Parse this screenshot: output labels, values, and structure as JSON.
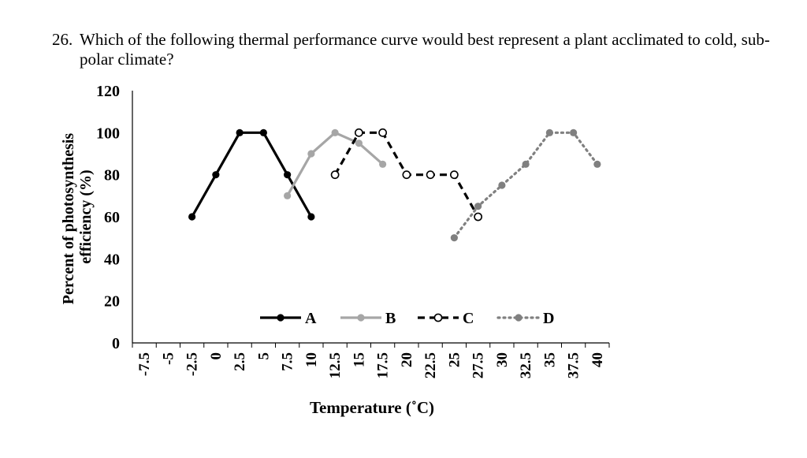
{
  "question": {
    "number": "26.",
    "text": "Which of the following thermal performance curve would best represent a plant acclimated to cold, sub-polar climate?"
  },
  "chart_data": {
    "type": "line",
    "title": "",
    "xlabel": "Temperature (˚C)",
    "ylabel_line1": "Percent of photosynthesis",
    "ylabel_line2": "efficiency (%)",
    "categories": [
      "-7.5",
      "-5",
      "-2.5",
      "0",
      "2.5",
      "5",
      "7.5",
      "10",
      "12.5",
      "15",
      "17.5",
      "20",
      "22.5",
      "25",
      "27.5",
      "30",
      "32.5",
      "35",
      "37.5",
      "40"
    ],
    "y_ticks": [
      "0",
      "20",
      "40",
      "60",
      "80",
      "100",
      "120"
    ],
    "ylim": [
      0,
      120
    ],
    "grid": false,
    "legend_position": "bottom-inside",
    "series": [
      {
        "name": "A",
        "color": "#000000",
        "dash": "solid",
        "marker": "filled",
        "x": [
          -2.5,
          0,
          2.5,
          5,
          7.5,
          10
        ],
        "y": [
          60,
          80,
          100,
          100,
          80,
          60
        ]
      },
      {
        "name": "B",
        "color": "#a6a6a6",
        "dash": "solid",
        "marker": "filled",
        "x": [
          7.5,
          10,
          12.5,
          15,
          17.5
        ],
        "y": [
          70,
          90,
          100,
          95,
          85
        ]
      },
      {
        "name": "C",
        "color": "#000000",
        "dash": "dashed",
        "marker": "open",
        "x": [
          12.5,
          15,
          17.5,
          20,
          22.5,
          25,
          27.5
        ],
        "y": [
          80,
          100,
          100,
          80,
          80,
          80,
          60
        ]
      },
      {
        "name": "D",
        "color": "#808080",
        "dash": "dotted",
        "marker": "filled",
        "x": [
          25,
          27.5,
          30,
          32.5,
          35,
          37.5,
          40
        ],
        "y": [
          50,
          65,
          75,
          85,
          100,
          100,
          85
        ]
      }
    ]
  }
}
